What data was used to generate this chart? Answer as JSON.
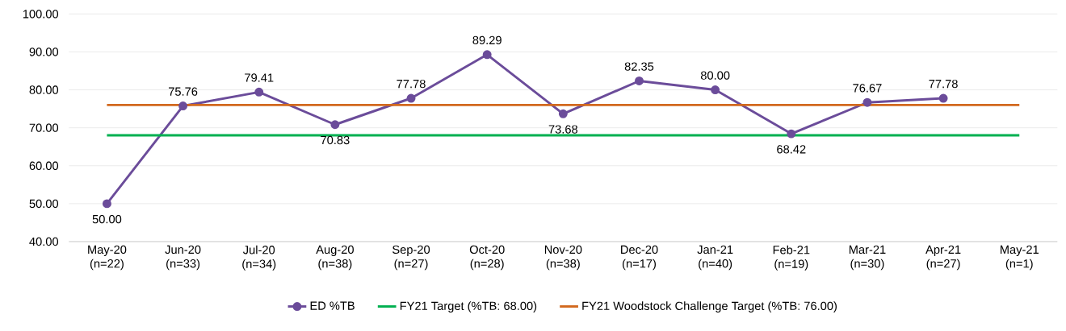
{
  "chart_data": {
    "type": "line",
    "categories": [
      "May-20 (n=22)",
      "Jun-20 (n=33)",
      "Jul-20 (n=34)",
      "Aug-20 (n=38)",
      "Sep-20 (n=27)",
      "Oct-20 (n=28)",
      "Nov-20 (n=38)",
      "Dec-20 (n=17)",
      "Jan-21 (n=40)",
      "Feb-21 (n=19)",
      "Mar-21 (n=30)",
      "Apr-21 (n=27)",
      "May-21 (n=1)"
    ],
    "series": [
      {
        "name": "ED %TB",
        "color": "#6b4c9a",
        "marker": "circle",
        "values": [
          50,
          75.76,
          79.41,
          70.83,
          77.78,
          89.29,
          73.68,
          82.35,
          80,
          68.42,
          76.67,
          77.78,
          null
        ],
        "value_labels": [
          "50.00",
          "75.76",
          "79.41",
          "70.83",
          "77.78",
          "89.29",
          "73.68",
          "82.35",
          "80.00",
          "68.42",
          "76.67",
          "77.78",
          null
        ]
      },
      {
        "name": "FY21 Target (%TB: 68.00)",
        "color": "#00b050",
        "marker": "none",
        "values": [
          68,
          68,
          68,
          68,
          68,
          68,
          68,
          68,
          68,
          68,
          68,
          68,
          68
        ]
      },
      {
        "name": "FY21 Woodstock Challenge Target (%TB: 76.00)",
        "color": "#d2691e",
        "marker": "none",
        "values": [
          76,
          76,
          76,
          76,
          76,
          76,
          76,
          76,
          76,
          76,
          76,
          76,
          76
        ]
      }
    ],
    "ylim": [
      40,
      100
    ],
    "yticks": [
      {
        "value": 40,
        "label": "40.00"
      },
      {
        "value": 50,
        "label": "50.00"
      },
      {
        "value": 60,
        "label": "60.00"
      },
      {
        "value": 70,
        "label": "70.00"
      },
      {
        "value": 80,
        "label": "80.00"
      },
      {
        "value": 90,
        "label": "90.00"
      },
      {
        "value": 100,
        "label": "100.00"
      }
    ],
    "grid": "y",
    "legend": "bottom"
  }
}
